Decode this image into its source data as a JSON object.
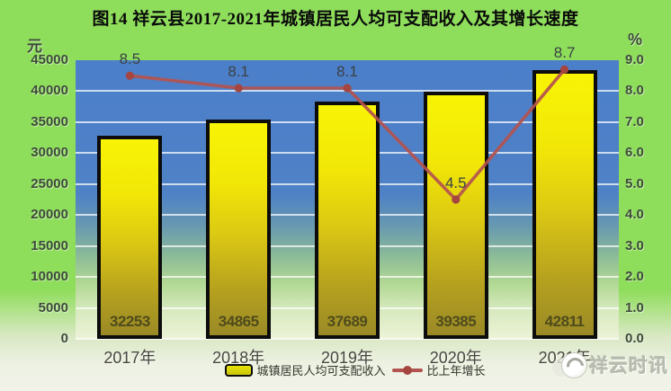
{
  "title": "图14 祥云县2017-2021年城镇居民人均可支配收入及其增长速度",
  "left_axis": {
    "unit": "元",
    "ticks": [
      "0",
      "5000",
      "10000",
      "15000",
      "20000",
      "25000",
      "30000",
      "35000",
      "40000",
      "45000"
    ]
  },
  "right_axis": {
    "unit": "%",
    "ticks": [
      "0.0",
      "1.0",
      "2.0",
      "3.0",
      "4.0",
      "5.0",
      "6.0",
      "7.0",
      "8.0",
      "9.0"
    ]
  },
  "legend": {
    "items": [
      {
        "label": "城镇居民人均可支配收入",
        "type": "bar"
      },
      {
        "label": "比上年增长",
        "type": "line"
      }
    ]
  },
  "watermark": {
    "text": "祥云时讯"
  },
  "colors": {
    "page_top": "#8edd5b",
    "page_bottom": "#f1f3e9",
    "plot_blue": "#4c7fc9",
    "bar_top": "#f8f405",
    "bar_bottom": "#9a8a26",
    "bar_border": "#0c0c0c",
    "line": "#b3534f",
    "marker": "#a4463f",
    "grid": "#ffffff",
    "tick_text": "#3c4a38",
    "value_text": "#4f4b1c",
    "label_text": "#3b4144",
    "title_text": "#0a0a0a"
  },
  "chart_data": {
    "type": "bar",
    "title": "图14 祥云县2017-2021年城镇居民人均可支配收入及其增长速度",
    "categories": [
      "2017年",
      "2018年",
      "2019年",
      "2020年",
      "2021年"
    ],
    "series": [
      {
        "name": "城镇居民人均可支配收入",
        "type": "bar",
        "axis": "left",
        "unit": "元",
        "values": [
          32253,
          34865,
          37689,
          39385,
          42811
        ]
      },
      {
        "name": "比上年增长",
        "type": "line",
        "axis": "right",
        "unit": "%",
        "values": [
          8.5,
          8.1,
          8.1,
          4.5,
          8.7
        ]
      }
    ],
    "left_ylim": [
      0,
      45000
    ],
    "left_step": 5000,
    "right_ylim": [
      0,
      9.0
    ],
    "right_step": 1.0,
    "grid": true,
    "legend_position": "bottom"
  }
}
